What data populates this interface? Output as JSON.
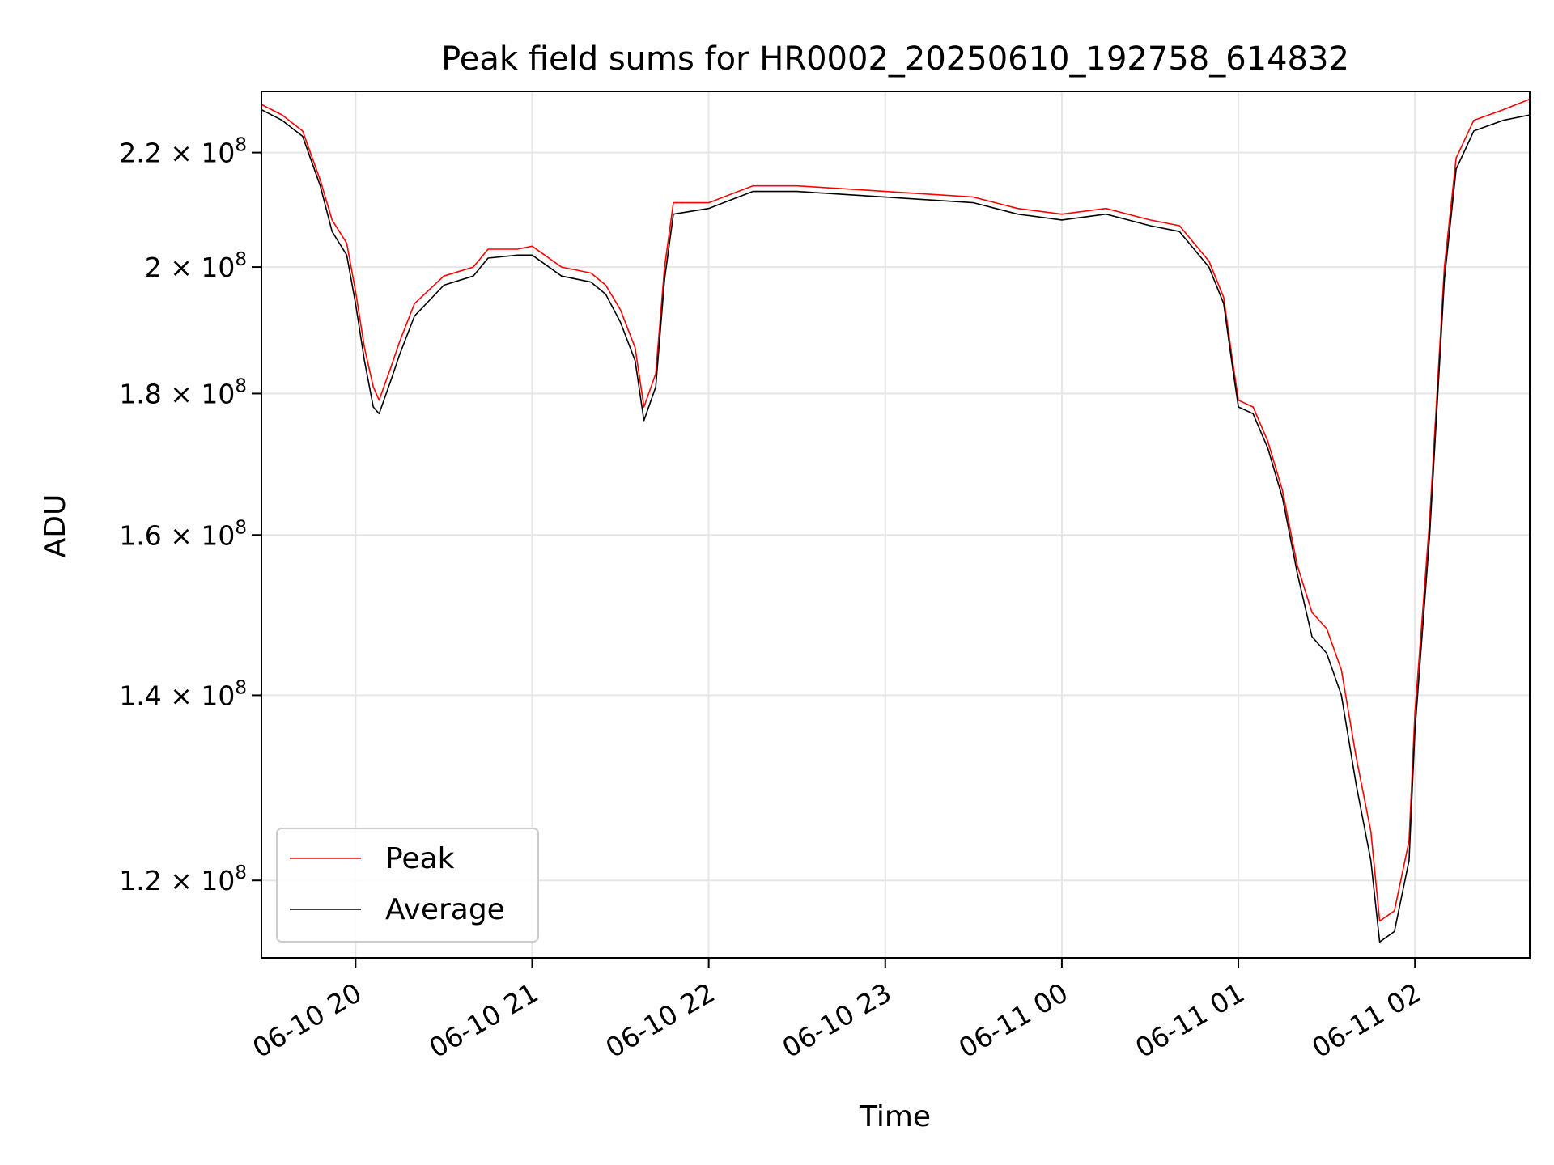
{
  "chart_data": {
    "type": "line",
    "title": "Peak field sums for HR0002_20250610_192758_614832",
    "xlabel": "Time",
    "ylabel": "ADU",
    "yscale": "log",
    "grid": true,
    "legend_position": "lower-left",
    "xlim": [
      "2025-06-10 19:28",
      "2025-06-11 02:39"
    ],
    "ylim": [
      112500000.0,
      231500000.0
    ],
    "x_ticks": [
      {
        "label": "06-10 20",
        "time": "2025-06-10 20:00"
      },
      {
        "label": "06-10 21",
        "time": "2025-06-10 21:00"
      },
      {
        "label": "06-10 22",
        "time": "2025-06-10 22:00"
      },
      {
        "label": "06-10 23",
        "time": "2025-06-10 23:00"
      },
      {
        "label": "06-11 00",
        "time": "2025-06-11 00:00"
      },
      {
        "label": "06-11 01",
        "time": "2025-06-11 01:00"
      },
      {
        "label": "06-11 02",
        "time": "2025-06-11 02:00"
      }
    ],
    "y_ticks": [
      {
        "base": "1.2 × 10",
        "exp": "8",
        "value": 120000000.0
      },
      {
        "base": "1.4 × 10",
        "exp": "8",
        "value": 140000000.0
      },
      {
        "base": "1.6 × 10",
        "exp": "8",
        "value": 160000000.0
      },
      {
        "base": "1.8 × 10",
        "exp": "8",
        "value": 180000000.0
      },
      {
        "base": "2 × 10",
        "exp": "8",
        "value": 200000000.0
      },
      {
        "base": "2.2 × 10",
        "exp": "8",
        "value": 220000000.0
      }
    ],
    "series": [
      {
        "name": "Peak",
        "color": "#ff0000",
        "points": [
          [
            "2025-06-10 19:28",
            229000000.0
          ],
          [
            "2025-06-10 19:35",
            227000000.0
          ],
          [
            "2025-06-10 19:42",
            224000000.0
          ],
          [
            "2025-06-10 19:48",
            215000000.0
          ],
          [
            "2025-06-10 19:52",
            208000000.0
          ],
          [
            "2025-06-10 19:57",
            204000000.0
          ],
          [
            "2025-06-10 20:00",
            196000000.0
          ],
          [
            "2025-06-10 20:03",
            187000000.0
          ],
          [
            "2025-06-10 20:06",
            181000000.0
          ],
          [
            "2025-06-10 20:08",
            179000000.0
          ],
          [
            "2025-06-10 20:12",
            184000000.0
          ],
          [
            "2025-06-10 20:15",
            188000000.0
          ],
          [
            "2025-06-10 20:20",
            194000000.0
          ],
          [
            "2025-06-10 20:30",
            198500000.0
          ],
          [
            "2025-06-10 20:40",
            200000000.0
          ],
          [
            "2025-06-10 20:45",
            203000000.0
          ],
          [
            "2025-06-10 20:55",
            203000000.0
          ],
          [
            "2025-06-10 21:00",
            203500000.0
          ],
          [
            "2025-06-10 21:10",
            200000000.0
          ],
          [
            "2025-06-10 21:20",
            199000000.0
          ],
          [
            "2025-06-10 21:25",
            197000000.0
          ],
          [
            "2025-06-10 21:30",
            193000000.0
          ],
          [
            "2025-06-10 21:35",
            187000000.0
          ],
          [
            "2025-06-10 21:38",
            178000000.0
          ],
          [
            "2025-06-10 21:42",
            183000000.0
          ],
          [
            "2025-06-10 21:45",
            200000000.0
          ],
          [
            "2025-06-10 21:48",
            211000000.0
          ],
          [
            "2025-06-10 22:00",
            211000000.0
          ],
          [
            "2025-06-10 22:10",
            213000000.0
          ],
          [
            "2025-06-10 22:15",
            214000000.0
          ],
          [
            "2025-06-10 22:30",
            214000000.0
          ],
          [
            "2025-06-10 22:45",
            213500000.0
          ],
          [
            "2025-06-10 23:00",
            213000000.0
          ],
          [
            "2025-06-10 23:15",
            212500000.0
          ],
          [
            "2025-06-10 23:30",
            212000000.0
          ],
          [
            "2025-06-10 23:45",
            210000000.0
          ],
          [
            "2025-06-11 00:00",
            209000000.0
          ],
          [
            "2025-06-11 00:15",
            210000000.0
          ],
          [
            "2025-06-11 00:30",
            208000000.0
          ],
          [
            "2025-06-11 00:40",
            207000000.0
          ],
          [
            "2025-06-11 00:50",
            201000000.0
          ],
          [
            "2025-06-11 00:55",
            195000000.0
          ],
          [
            "2025-06-11 00:58",
            185000000.0
          ],
          [
            "2025-06-11 01:00",
            179000000.0
          ],
          [
            "2025-06-11 01:05",
            178000000.0
          ],
          [
            "2025-06-11 01:10",
            173000000.0
          ],
          [
            "2025-06-11 01:15",
            166000000.0
          ],
          [
            "2025-06-11 01:20",
            156000000.0
          ],
          [
            "2025-06-11 01:25",
            150000000.0
          ],
          [
            "2025-06-11 01:30",
            148000000.0
          ],
          [
            "2025-06-11 01:35",
            143000000.0
          ],
          [
            "2025-06-11 01:40",
            133000000.0
          ],
          [
            "2025-06-11 01:45",
            125000000.0
          ],
          [
            "2025-06-11 01:48",
            116000000.0
          ],
          [
            "2025-06-11 01:53",
            117000000.0
          ],
          [
            "2025-06-11 01:58",
            124000000.0
          ],
          [
            "2025-06-11 02:00",
            138000000.0
          ],
          [
            "2025-06-11 02:05",
            162000000.0
          ],
          [
            "2025-06-11 02:10",
            200000000.0
          ],
          [
            "2025-06-11 02:14",
            219000000.0
          ],
          [
            "2025-06-11 02:20",
            226000000.0
          ],
          [
            "2025-06-11 02:30",
            228000000.0
          ],
          [
            "2025-06-11 02:39",
            230000000.0
          ]
        ]
      },
      {
        "name": "Average",
        "color": "#000000",
        "points": [
          [
            "2025-06-10 19:28",
            228000000.0
          ],
          [
            "2025-06-10 19:35",
            226000000.0
          ],
          [
            "2025-06-10 19:42",
            223000000.0
          ],
          [
            "2025-06-10 19:48",
            214000000.0
          ],
          [
            "2025-06-10 19:52",
            206000000.0
          ],
          [
            "2025-06-10 19:57",
            202000000.0
          ],
          [
            "2025-06-10 20:00",
            194000000.0
          ],
          [
            "2025-06-10 20:03",
            185000000.0
          ],
          [
            "2025-06-10 20:06",
            178000000.0
          ],
          [
            "2025-06-10 20:08",
            177000000.0
          ],
          [
            "2025-06-10 20:12",
            182000000.0
          ],
          [
            "2025-06-10 20:15",
            186000000.0
          ],
          [
            "2025-06-10 20:20",
            192000000.0
          ],
          [
            "2025-06-10 20:30",
            197000000.0
          ],
          [
            "2025-06-10 20:40",
            198500000.0
          ],
          [
            "2025-06-10 20:45",
            201500000.0
          ],
          [
            "2025-06-10 20:55",
            202000000.0
          ],
          [
            "2025-06-10 21:00",
            202000000.0
          ],
          [
            "2025-06-10 21:10",
            198500000.0
          ],
          [
            "2025-06-10 21:20",
            197500000.0
          ],
          [
            "2025-06-10 21:25",
            195500000.0
          ],
          [
            "2025-06-10 21:30",
            191000000.0
          ],
          [
            "2025-06-10 21:35",
            185000000.0
          ],
          [
            "2025-06-10 21:38",
            176000000.0
          ],
          [
            "2025-06-10 21:42",
            181000000.0
          ],
          [
            "2025-06-10 21:45",
            198000000.0
          ],
          [
            "2025-06-10 21:48",
            209000000.0
          ],
          [
            "2025-06-10 22:00",
            210000000.0
          ],
          [
            "2025-06-10 22:10",
            212000000.0
          ],
          [
            "2025-06-10 22:15",
            213000000.0
          ],
          [
            "2025-06-10 22:30",
            213000000.0
          ],
          [
            "2025-06-10 22:45",
            212500000.0
          ],
          [
            "2025-06-10 23:00",
            212000000.0
          ],
          [
            "2025-06-10 23:15",
            211500000.0
          ],
          [
            "2025-06-10 23:30",
            211000000.0
          ],
          [
            "2025-06-10 23:45",
            209000000.0
          ],
          [
            "2025-06-11 00:00",
            208000000.0
          ],
          [
            "2025-06-11 00:15",
            209000000.0
          ],
          [
            "2025-06-11 00:30",
            207000000.0
          ],
          [
            "2025-06-11 00:40",
            206000000.0
          ],
          [
            "2025-06-11 00:50",
            200000000.0
          ],
          [
            "2025-06-11 00:55",
            194000000.0
          ],
          [
            "2025-06-11 00:58",
            184000000.0
          ],
          [
            "2025-06-11 01:00",
            178000000.0
          ],
          [
            "2025-06-11 01:05",
            177000000.0
          ],
          [
            "2025-06-11 01:10",
            172000000.0
          ],
          [
            "2025-06-11 01:15",
            165000000.0
          ],
          [
            "2025-06-11 01:20",
            155000000.0
          ],
          [
            "2025-06-11 01:25",
            147000000.0
          ],
          [
            "2025-06-11 01:30",
            145000000.0
          ],
          [
            "2025-06-11 01:35",
            140000000.0
          ],
          [
            "2025-06-11 01:40",
            130000000.0
          ],
          [
            "2025-06-11 01:45",
            122000000.0
          ],
          [
            "2025-06-11 01:48",
            114000000.0
          ],
          [
            "2025-06-11 01:53",
            115000000.0
          ],
          [
            "2025-06-11 01:58",
            122000000.0
          ],
          [
            "2025-06-11 02:00",
            136000000.0
          ],
          [
            "2025-06-11 02:05",
            160000000.0
          ],
          [
            "2025-06-11 02:10",
            198000000.0
          ],
          [
            "2025-06-11 02:14",
            217000000.0
          ],
          [
            "2025-06-11 02:20",
            224000000.0
          ],
          [
            "2025-06-11 02:30",
            226000000.0
          ],
          [
            "2025-06-11 02:39",
            227000000.0
          ]
        ]
      }
    ]
  }
}
